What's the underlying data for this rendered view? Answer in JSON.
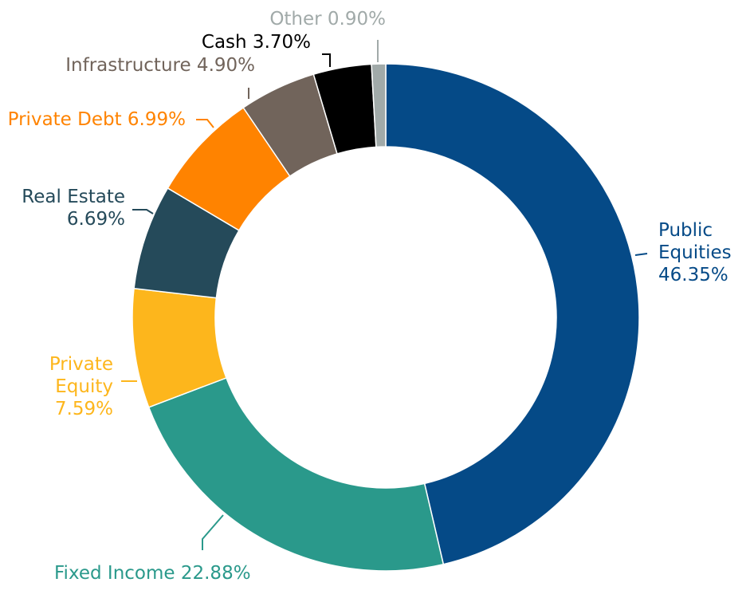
{
  "chart_data": {
    "type": "pie",
    "donut": true,
    "start_angle_deg": 0,
    "direction": "clockwise",
    "slices": [
      {
        "name": "Public Equities",
        "value": 46.35,
        "color": "#054a87",
        "label_lines": [
          "Public",
          "Equities",
          "46.35%"
        ]
      },
      {
        "name": "Fixed Income",
        "value": 22.88,
        "color": "#2a998b",
        "label_lines": [
          "Fixed Income 22.88%"
        ]
      },
      {
        "name": "Private Equity",
        "value": 7.59,
        "color": "#fdb61c",
        "label_lines": [
          "Private",
          "Equity",
          "7.59%"
        ]
      },
      {
        "name": "Real Estate",
        "value": 6.69,
        "color": "#254a5a",
        "label_lines": [
          "Real Estate",
          "6.69%"
        ]
      },
      {
        "name": "Private Debt",
        "value": 6.99,
        "color": "#ff8300",
        "label_lines": [
          "Private Debt 6.99%"
        ]
      },
      {
        "name": "Infrastructure",
        "value": 4.9,
        "color": "#71645b",
        "label_lines": [
          "Infrastructure 4.90%"
        ]
      },
      {
        "name": "Cash",
        "value": 3.7,
        "color": "#000000",
        "label_lines": [
          "Cash 3.70%"
        ]
      },
      {
        "name": "Other",
        "value": 0.9,
        "color": "#a1aaa9",
        "label_lines": [
          "Other 0.90%"
        ]
      }
    ],
    "label_colors": {
      "Public Equities": "#054a87",
      "Fixed Income": "#2a998b",
      "Private Equity": "#fdb61c",
      "Real Estate": "#254a5a",
      "Private Debt": "#ff8300",
      "Infrastructure": "#71645b",
      "Cash": "#000000",
      "Other": "#a1aaa9"
    },
    "legend": "none"
  }
}
